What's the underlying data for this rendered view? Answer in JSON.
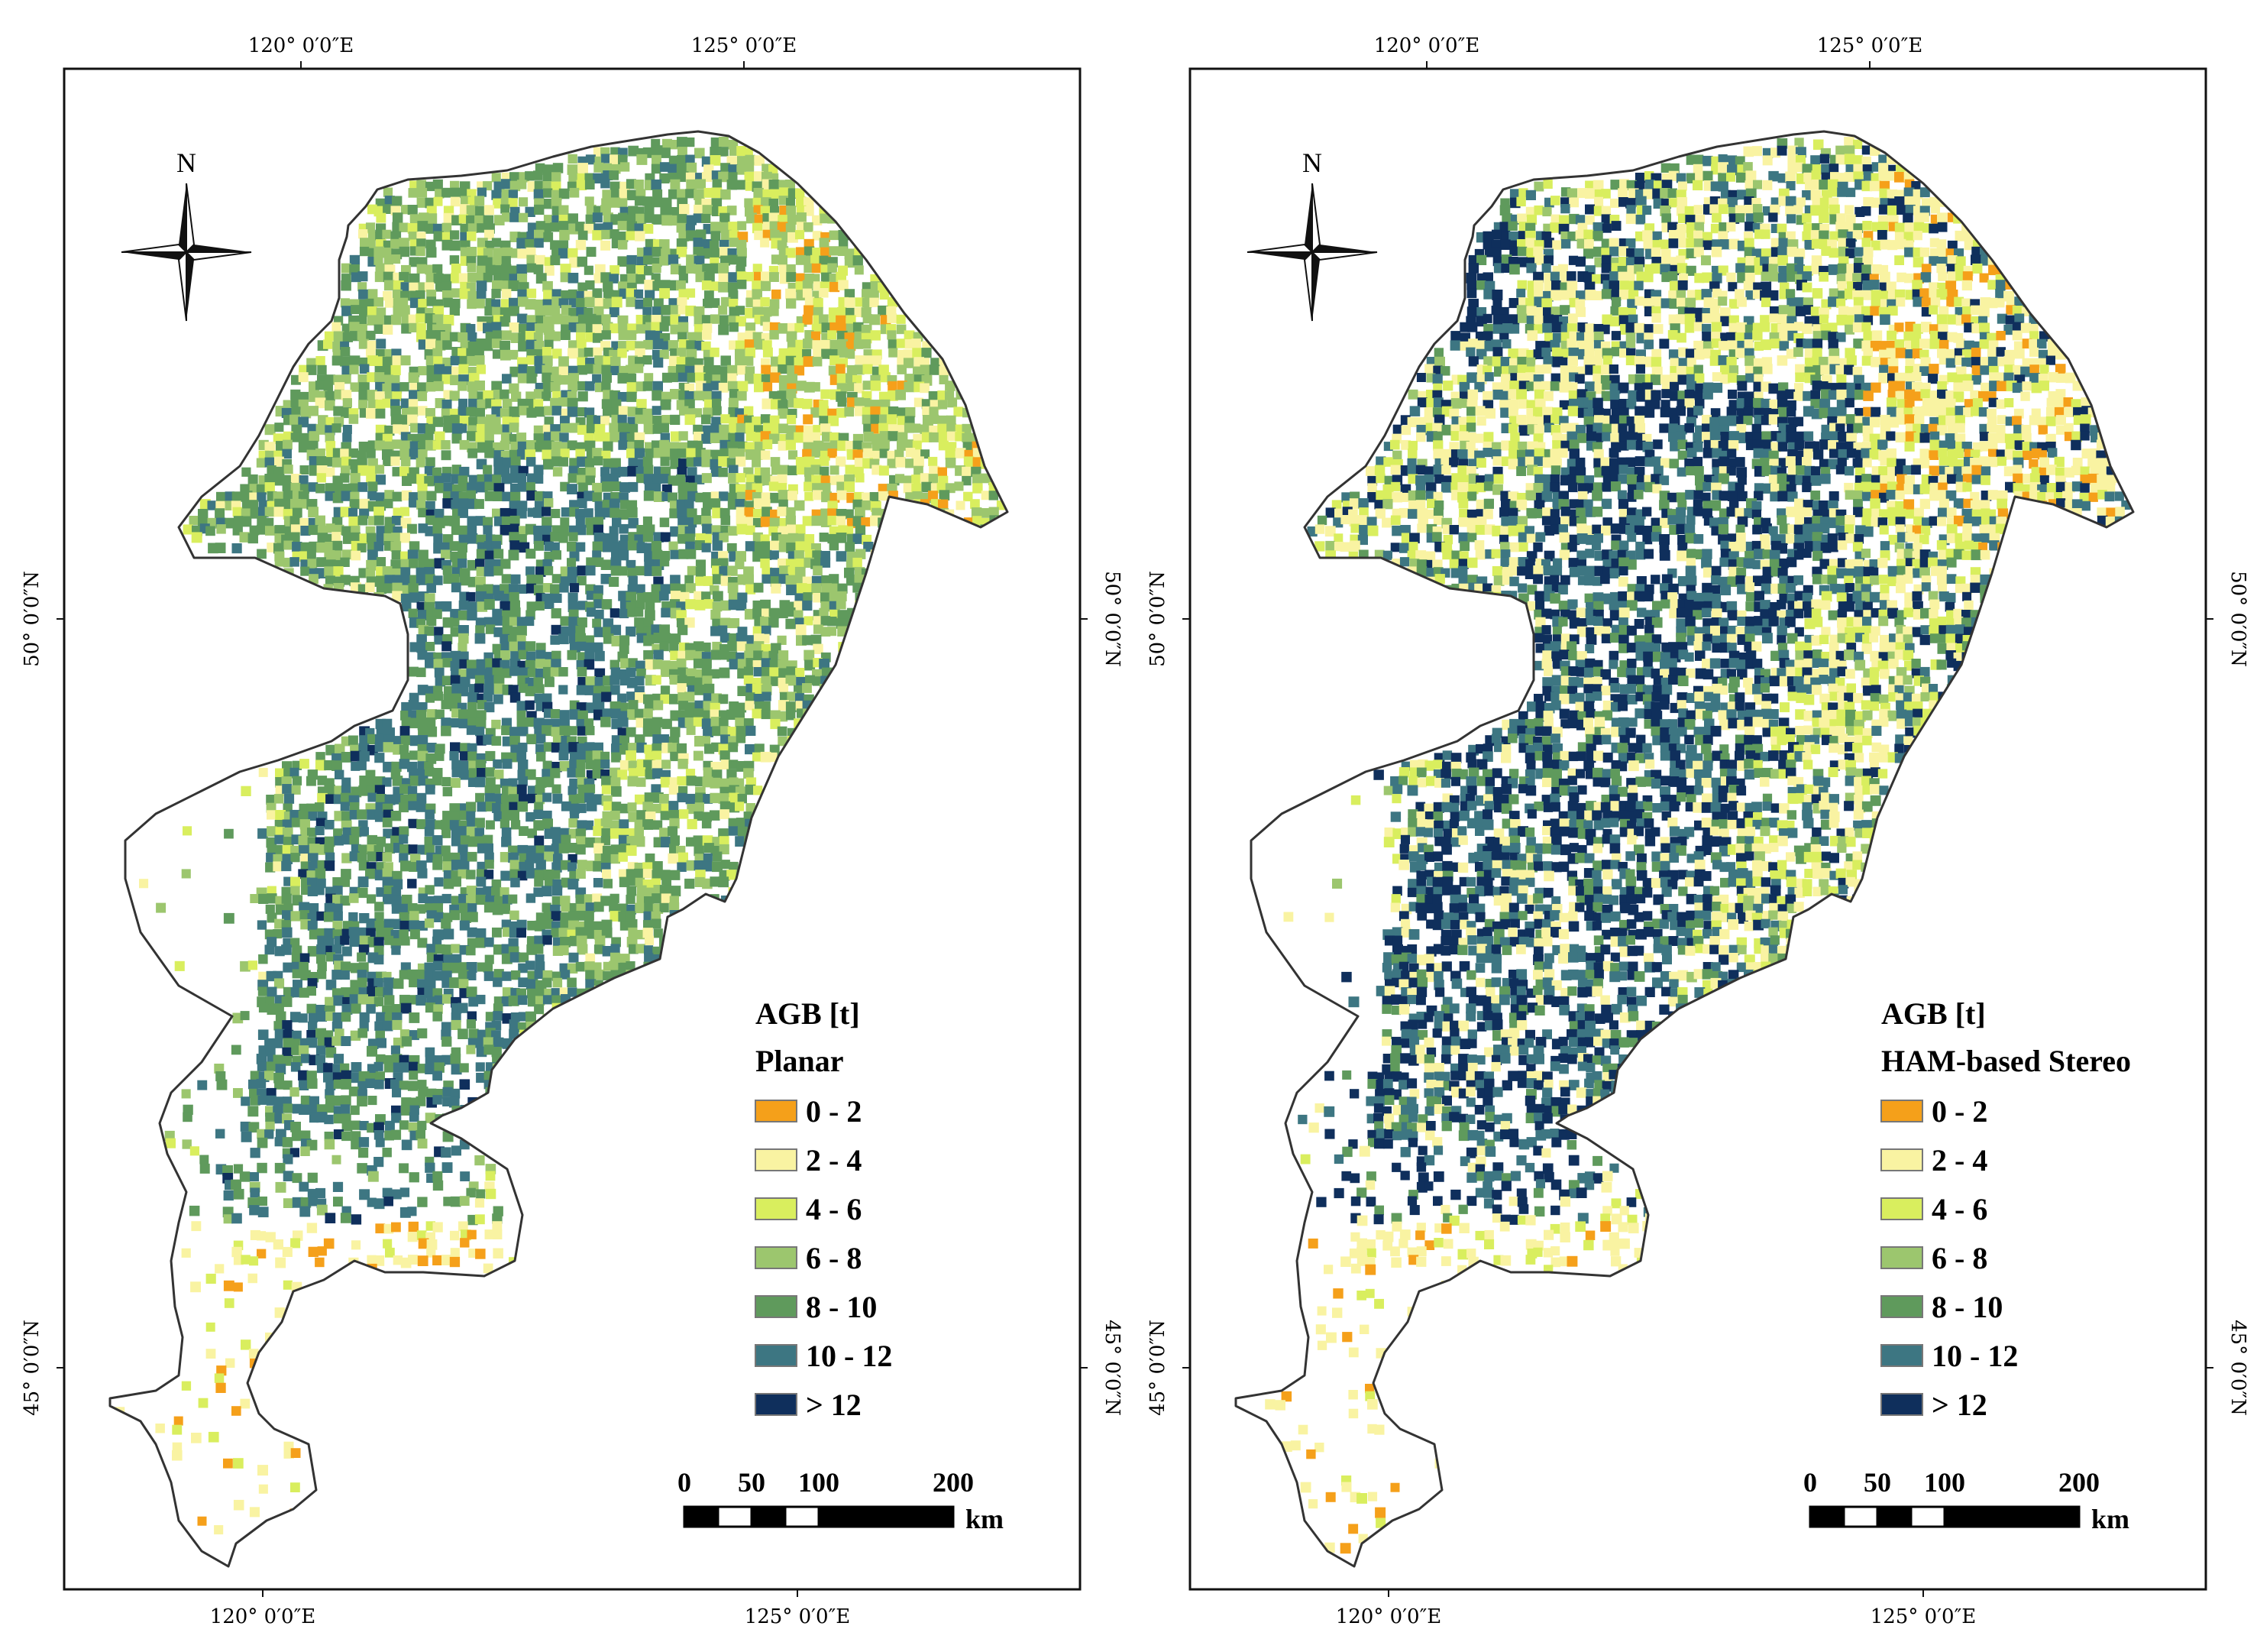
{
  "colors": {
    "0-2": "#f5a01a",
    "2-4": "#f9f3a2",
    "4-6": "#d9ee5e",
    "6-8": "#9cc66e",
    "8-10": "#5f9a5c",
    "10-12": "#3d7682",
    ">12": "#0f2f5c",
    "boundary": "#333333"
  },
  "panels": [
    {
      "id": "planar",
      "top_lon_labels": [
        "120°  0′0″E",
        "125°  0′0″E"
      ],
      "bottom_lon_labels": [
        "120°  0′0″E",
        "125°  0′0″E"
      ],
      "lat_labels": [
        "50°  0′0″N",
        "45°  0′0″N"
      ],
      "north_label": "N",
      "legend": {
        "title": "AGB [t]",
        "subtitle": "Planar",
        "classes": [
          {
            "label": "0 - 2",
            "color": "#f5a01a"
          },
          {
            "label": "2 - 4",
            "color": "#f9f3a2"
          },
          {
            "label": "4 - 6",
            "color": "#d9ee5e"
          },
          {
            "label": "6 - 8",
            "color": "#9cc66e"
          },
          {
            "label": "8 - 10",
            "color": "#5f9a5c"
          },
          {
            "label": "10 - 12",
            "color": "#3d7682"
          },
          {
            "label": "> 12",
            "color": "#0f2f5c"
          }
        ]
      },
      "scale": {
        "ticks": [
          "0",
          "50",
          "100",
          "200"
        ],
        "unit": "km"
      },
      "dominant_colors": [
        "#5f9a5c",
        "#9cc66e",
        "#3d7682",
        "#d9ee5e"
      ]
    },
    {
      "id": "ham-stereo",
      "top_lon_labels": [
        "120°  0′0″E",
        "125°  0′0″E"
      ],
      "bottom_lon_labels": [
        "120°  0′0″E",
        "125°  0′0″E"
      ],
      "lat_labels": [
        "50°  0′0″N",
        "45°  0′0″N"
      ],
      "north_label": "N",
      "legend": {
        "title": "AGB [t]",
        "subtitle": "HAM-based Stereo",
        "classes": [
          {
            "label": "0 - 2",
            "color": "#f5a01a"
          },
          {
            "label": "2 - 4",
            "color": "#f9f3a2"
          },
          {
            "label": "4 - 6",
            "color": "#d9ee5e"
          },
          {
            "label": "6 - 8",
            "color": "#9cc66e"
          },
          {
            "label": "8 - 10",
            "color": "#5f9a5c"
          },
          {
            "label": "10 - 12",
            "color": "#3d7682"
          },
          {
            "label": "> 12",
            "color": "#0f2f5c"
          }
        ]
      },
      "scale": {
        "ticks": [
          "0",
          "50",
          "100",
          "200"
        ],
        "unit": "km"
      },
      "dominant_colors": [
        "#0f2f5c",
        "#3d7682",
        "#f9f3a2",
        "#d9ee5e"
      ]
    }
  ]
}
